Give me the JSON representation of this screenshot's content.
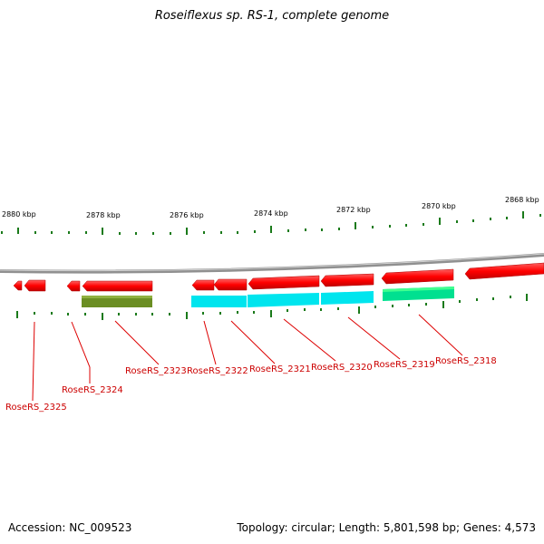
{
  "title": "Roseiflexus sp. RS-1, complete genome",
  "footer": {
    "accession": "Accession: NC_009523",
    "stats": "Topology: circular; Length: 5,801,598 bp; Genes: 4,573"
  },
  "ruler": {
    "labels": [
      "2880 kbp",
      "2878 kbp",
      "2876 kbp",
      "2874 kbp",
      "2872 kbp",
      "2870 kbp",
      "2868 kbp"
    ]
  },
  "colors": {
    "gene_arrow": "#ff0000",
    "track_olive": "#6b8e23",
    "track_cyan": "#00e5ee",
    "track_green": "#00e090",
    "backbone": "#909090",
    "tick": "#1a7a1a",
    "label_line": "#dd0000"
  },
  "gene_labels": [
    "RoseRS_2325",
    "RoseRS_2324",
    "RoseRS_2323",
    "RoseRS_2322",
    "RoseRS_2321",
    "RoseRS_2320",
    "RoseRS_2319",
    "RoseRS_2318"
  ]
}
